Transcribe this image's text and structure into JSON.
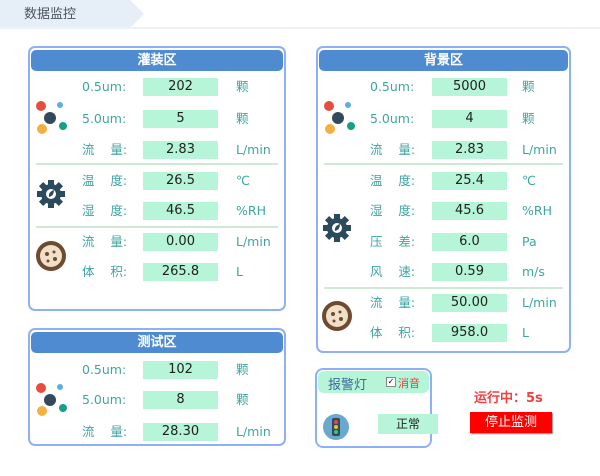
{
  "tab": {
    "label": "数据监控"
  },
  "filling": {
    "title": "灌装区",
    "rows": [
      {
        "label": "0.5um:",
        "value": "202",
        "unit": "颗"
      },
      {
        "label": "5.0um:",
        "value": "5",
        "unit": "颗"
      },
      {
        "label": "流    量:",
        "value": "2.83",
        "unit": "L/min"
      },
      {
        "label": "温    度:",
        "value": "26.5",
        "unit": "℃"
      },
      {
        "label": "湿    度:",
        "value": "46.5",
        "unit": "%RH"
      },
      {
        "label": "流    量:",
        "value": "0.00",
        "unit": "L/min"
      },
      {
        "label": "体    积:",
        "value": "265.8",
        "unit": "L"
      }
    ]
  },
  "test": {
    "title": "测试区",
    "rows": [
      {
        "label": "0.5um:",
        "value": "102",
        "unit": "颗"
      },
      {
        "label": "5.0um:",
        "value": "8",
        "unit": "颗"
      },
      {
        "label": "流    量:",
        "value": "28.30",
        "unit": "L/min"
      }
    ]
  },
  "background": {
    "title": "背景区",
    "rows": [
      {
        "label": "0.5um:",
        "value": "5000",
        "unit": "颗"
      },
      {
        "label": "5.0um:",
        "value": "4",
        "unit": "颗"
      },
      {
        "label": "流    量:",
        "value": "2.83",
        "unit": "L/min"
      },
      {
        "label": "温    度:",
        "value": "25.4",
        "unit": "℃"
      },
      {
        "label": "湿    度:",
        "value": "45.6",
        "unit": "%RH"
      },
      {
        "label": "压    差:",
        "value": "6.0",
        "unit": "Pa"
      },
      {
        "label": "风    速:",
        "value": "0.59",
        "unit": "m/s"
      },
      {
        "label": "流    量:",
        "value": "50.00",
        "unit": "L/min"
      },
      {
        "label": "体    积:",
        "value": "958.0",
        "unit": "L"
      }
    ]
  },
  "alarm": {
    "title": "报警灯",
    "mute_label": "消音",
    "mute_checked": true,
    "status": "正常"
  },
  "run": {
    "status": "运行中：5s",
    "stop_label": "停止监测",
    "stop_color": "#ff0000"
  }
}
